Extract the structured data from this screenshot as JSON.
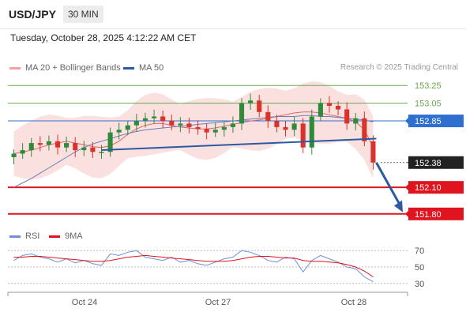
{
  "header": {
    "symbol": "USD/JPY",
    "timeframe": "30 MIN",
    "datetime": "Tuesday, October 28, 2025 4:12:22 AM CET"
  },
  "legend": {
    "ma": "MA 20 + Bollinger Bands",
    "ma50": "MA 50",
    "rsi": "RSI",
    "rsi_ma": "9MA",
    "copyright": "Research © 2025 Trading Central"
  },
  "colors": {
    "resistance": "#6aa84f",
    "pivot": "#2f6fcf",
    "support": "#e0141e",
    "current": "#222222",
    "trendline": "#2c5aa0",
    "bollinger": "#f8c6c6",
    "ma20": "#e06666",
    "ma50": "#6a7fb5",
    "candle_up": "#2e8b3a",
    "candle_down": "#d9332b",
    "rsi": "#6f8fd8",
    "rsi_ma": "#e0141e"
  },
  "chart_data": {
    "type": "line",
    "title": "",
    "xlabel": "",
    "ylabel": "",
    "ylim": [
      151.7,
      153.35
    ],
    "x_ticks": [
      "Oct 24",
      "Oct 27",
      "Oct 28"
    ],
    "price_levels": [
      {
        "label": "153.25",
        "value": 153.25,
        "kind": "resistance"
      },
      {
        "label": "153.05",
        "value": 153.05,
        "kind": "resistance"
      },
      {
        "label": "152.85",
        "value": 152.85,
        "kind": "pivot"
      },
      {
        "label": "152.38",
        "value": 152.38,
        "kind": "current"
      },
      {
        "label": "152.10",
        "value": 152.1,
        "kind": "support"
      },
      {
        "label": "151.80",
        "value": 151.8,
        "kind": "support"
      }
    ],
    "series": [
      {
        "name": "MA 20 + Bollinger Bands",
        "values": [
          152.48,
          152.5,
          152.52,
          152.55,
          152.58,
          152.6,
          152.62,
          152.6,
          152.58,
          152.56,
          152.55,
          152.57,
          152.62,
          152.7,
          152.76,
          152.8,
          152.82,
          152.82,
          152.8,
          152.78,
          152.77,
          152.76,
          152.76,
          152.77,
          152.79,
          152.81,
          152.83,
          152.85,
          152.86,
          152.88,
          152.9,
          152.92,
          152.94,
          152.95,
          152.95,
          152.94,
          152.92,
          152.9,
          152.88,
          152.84,
          152.75,
          152.55
        ]
      },
      {
        "name": "MA 50",
        "values": [
          152.1,
          152.15,
          152.2,
          152.26,
          152.32,
          152.38,
          152.44,
          152.5,
          152.55,
          152.59,
          152.62,
          152.65,
          152.68,
          152.71,
          152.73,
          152.75,
          152.76,
          152.77,
          152.78,
          152.79,
          152.8,
          152.81,
          152.82,
          152.83,
          152.84,
          152.85,
          152.86,
          152.87,
          152.88,
          152.89,
          152.9,
          152.9,
          152.9,
          152.91,
          152.91,
          152.9,
          152.9,
          152.89,
          152.88,
          152.87,
          152.86,
          152.84
        ]
      },
      {
        "name": "Price",
        "values": [
          152.48,
          152.52,
          152.6,
          152.58,
          152.62,
          152.55,
          152.6,
          152.52,
          152.55,
          152.5,
          152.5,
          152.72,
          152.75,
          152.8,
          152.85,
          152.88,
          152.9,
          152.85,
          152.8,
          152.82,
          152.78,
          152.76,
          152.72,
          152.75,
          152.78,
          152.82,
          153.05,
          153.08,
          152.95,
          152.85,
          152.78,
          152.75,
          152.82,
          152.55,
          152.9,
          153.05,
          153.02,
          152.98,
          152.82,
          152.88,
          152.62,
          152.38
        ]
      }
    ],
    "rsi": {
      "axis_ticks": [
        70,
        50,
        30
      ],
      "ylim": [
        25,
        75
      ],
      "values": [
        58,
        64,
        66,
        62,
        60,
        56,
        60,
        55,
        58,
        54,
        52,
        66,
        64,
        68,
        70,
        62,
        60,
        58,
        62,
        56,
        58,
        54,
        52,
        56,
        60,
        62,
        70,
        68,
        64,
        58,
        56,
        62,
        60,
        44,
        58,
        64,
        60,
        56,
        50,
        48,
        38,
        32
      ],
      "ma_values": [
        62,
        62,
        63,
        63,
        62,
        61,
        60,
        59,
        58,
        57,
        57,
        58,
        60,
        62,
        63,
        64,
        63,
        62,
        61,
        60,
        59,
        58,
        57,
        57,
        57,
        58,
        60,
        62,
        63,
        63,
        62,
        61,
        61,
        58,
        57,
        57,
        56,
        55,
        53,
        50,
        45,
        38
      ]
    }
  }
}
